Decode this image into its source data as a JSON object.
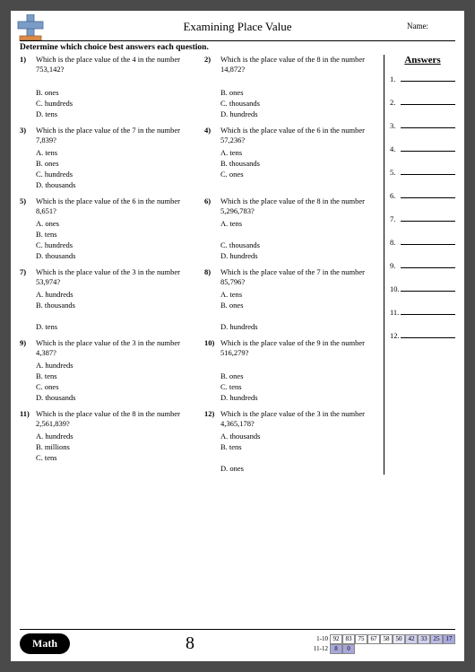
{
  "header": {
    "title": "Examining Place Value",
    "name_label": "Name:",
    "instructions": "Determine which choice best answers each question."
  },
  "answers_panel": {
    "title": "Answers",
    "count": 12
  },
  "questions": [
    {
      "num": "1)",
      "text": "Which is the place value of the 4 in the number 753,142?",
      "choices": [
        "",
        "B.  ones",
        "C.  hundreds",
        "D.  tens"
      ]
    },
    {
      "num": "2)",
      "text": "Which is the place value of the 8 in the number 14,872?",
      "choices": [
        "",
        "B.  ones",
        "C.  thousands",
        "D.  hundreds"
      ]
    },
    {
      "num": "3)",
      "text": "Which is the place value of the 7 in the number 7,839?",
      "choices": [
        "A.  tens",
        "B.  ones",
        "C.  hundreds",
        "D.  thousands"
      ]
    },
    {
      "num": "4)",
      "text": "Which is the place value of the 6 in the number 57,236?",
      "choices": [
        "A.  tens",
        "B.  thousands",
        "C.  ones",
        ""
      ]
    },
    {
      "num": "5)",
      "text": "Which is the place value of the 6 in the number 8,651?",
      "choices": [
        "A.  ones",
        "B.  tens",
        "C.  hundreds",
        "D.  thousands"
      ]
    },
    {
      "num": "6)",
      "text": "Which is the place value of the 8 in the number 5,296,783?",
      "choices": [
        "A.  tens",
        "",
        "C.  thousands",
        "D.  hundreds"
      ]
    },
    {
      "num": "7)",
      "text": "Which is the place value of the 3 in the number 53,974?",
      "choices": [
        "A.  hundreds",
        "B.  thousands",
        "",
        "D.  tens"
      ]
    },
    {
      "num": "8)",
      "text": "Which is the place value of the 7 in the number 85,796?",
      "choices": [
        "A.  tens",
        "B.  ones",
        "",
        "D.  hundreds"
      ]
    },
    {
      "num": "9)",
      "text": "Which is the place value of the 3 in the number 4,387?",
      "choices": [
        "A.  hundreds",
        "B.  tens",
        "C.  ones",
        "D.  thousands"
      ]
    },
    {
      "num": "10)",
      "text": "Which is the place value of the 9 in the number 516,279?",
      "choices": [
        "",
        "B.  ones",
        "C.  tens",
        "D.  hundreds"
      ]
    },
    {
      "num": "11)",
      "text": "Which is the place value of the 8 in the number 2,561,839?",
      "choices": [
        "A.  hundreds",
        "B.  millions",
        "C.  tens",
        ""
      ]
    },
    {
      "num": "12)",
      "text": "Which is the place value of the 3 in the number 4,365,178?",
      "choices": [
        "A.  thousands",
        "B.  tens",
        "",
        "D.  ones"
      ]
    }
  ],
  "footer": {
    "math_label": "Math",
    "page_number": "8",
    "score": {
      "row1_label": "1-10",
      "row1": [
        {
          "v": "92",
          "s": 0
        },
        {
          "v": "83",
          "s": 0
        },
        {
          "v": "75",
          "s": 0
        },
        {
          "v": "67",
          "s": 0
        },
        {
          "v": "58",
          "s": 0
        },
        {
          "v": "50",
          "s": 1
        },
        {
          "v": "42",
          "s": 2
        },
        {
          "v": "33",
          "s": 2
        },
        {
          "v": "25",
          "s": 3
        },
        {
          "v": "17",
          "s": 4
        }
      ],
      "row2_label": "11-12",
      "row2": [
        {
          "v": "8",
          "s": 4
        },
        {
          "v": "0",
          "s": 4
        }
      ]
    }
  },
  "colors": {
    "logo_blue": "#7a9cc6",
    "logo_orange": "#d98a4a"
  }
}
